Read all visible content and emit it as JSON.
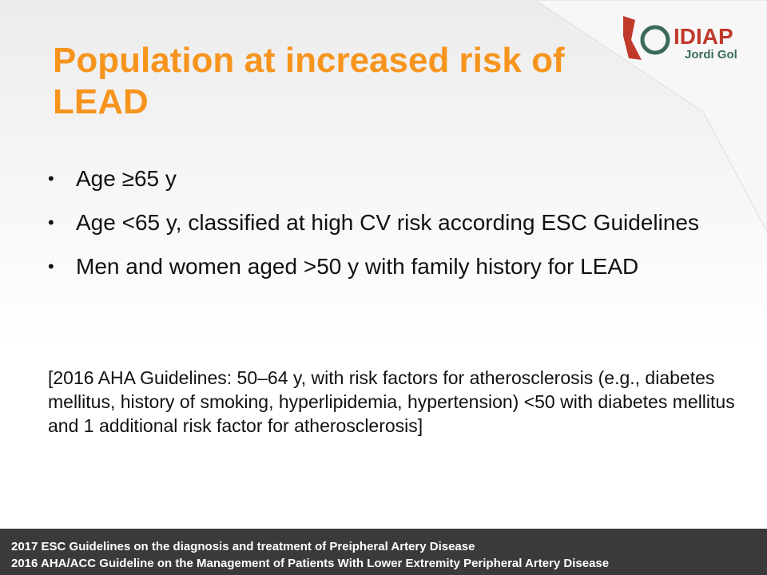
{
  "header": {
    "title": "Population at increased risk of LEAD",
    "logo": {
      "name": "IDIAP",
      "subname": "Jordi Gol"
    }
  },
  "bullets": [
    "Age ≥65 y",
    "Age <65 y, classified at high CV risk according ESC Guidelines",
    "Men and women aged >50 y with family history for LEAD"
  ],
  "note": "[2016 AHA Guidelines: 50–64 y, with risk factors for atherosclerosis (e.g., diabetes mellitus, history of smoking, hyperlipidemia, hypertension) <50 with diabetes mellitus and 1 additional risk factor for atherosclerosis]",
  "footer": [
    "2017 ESC Guidelines on the diagnosis and treatment of Preipheral Artery Disease",
    "2016 AHA/ACC Guideline  on the Management of Patients With Lower Extremity Peripheral Artery Disease"
  ]
}
